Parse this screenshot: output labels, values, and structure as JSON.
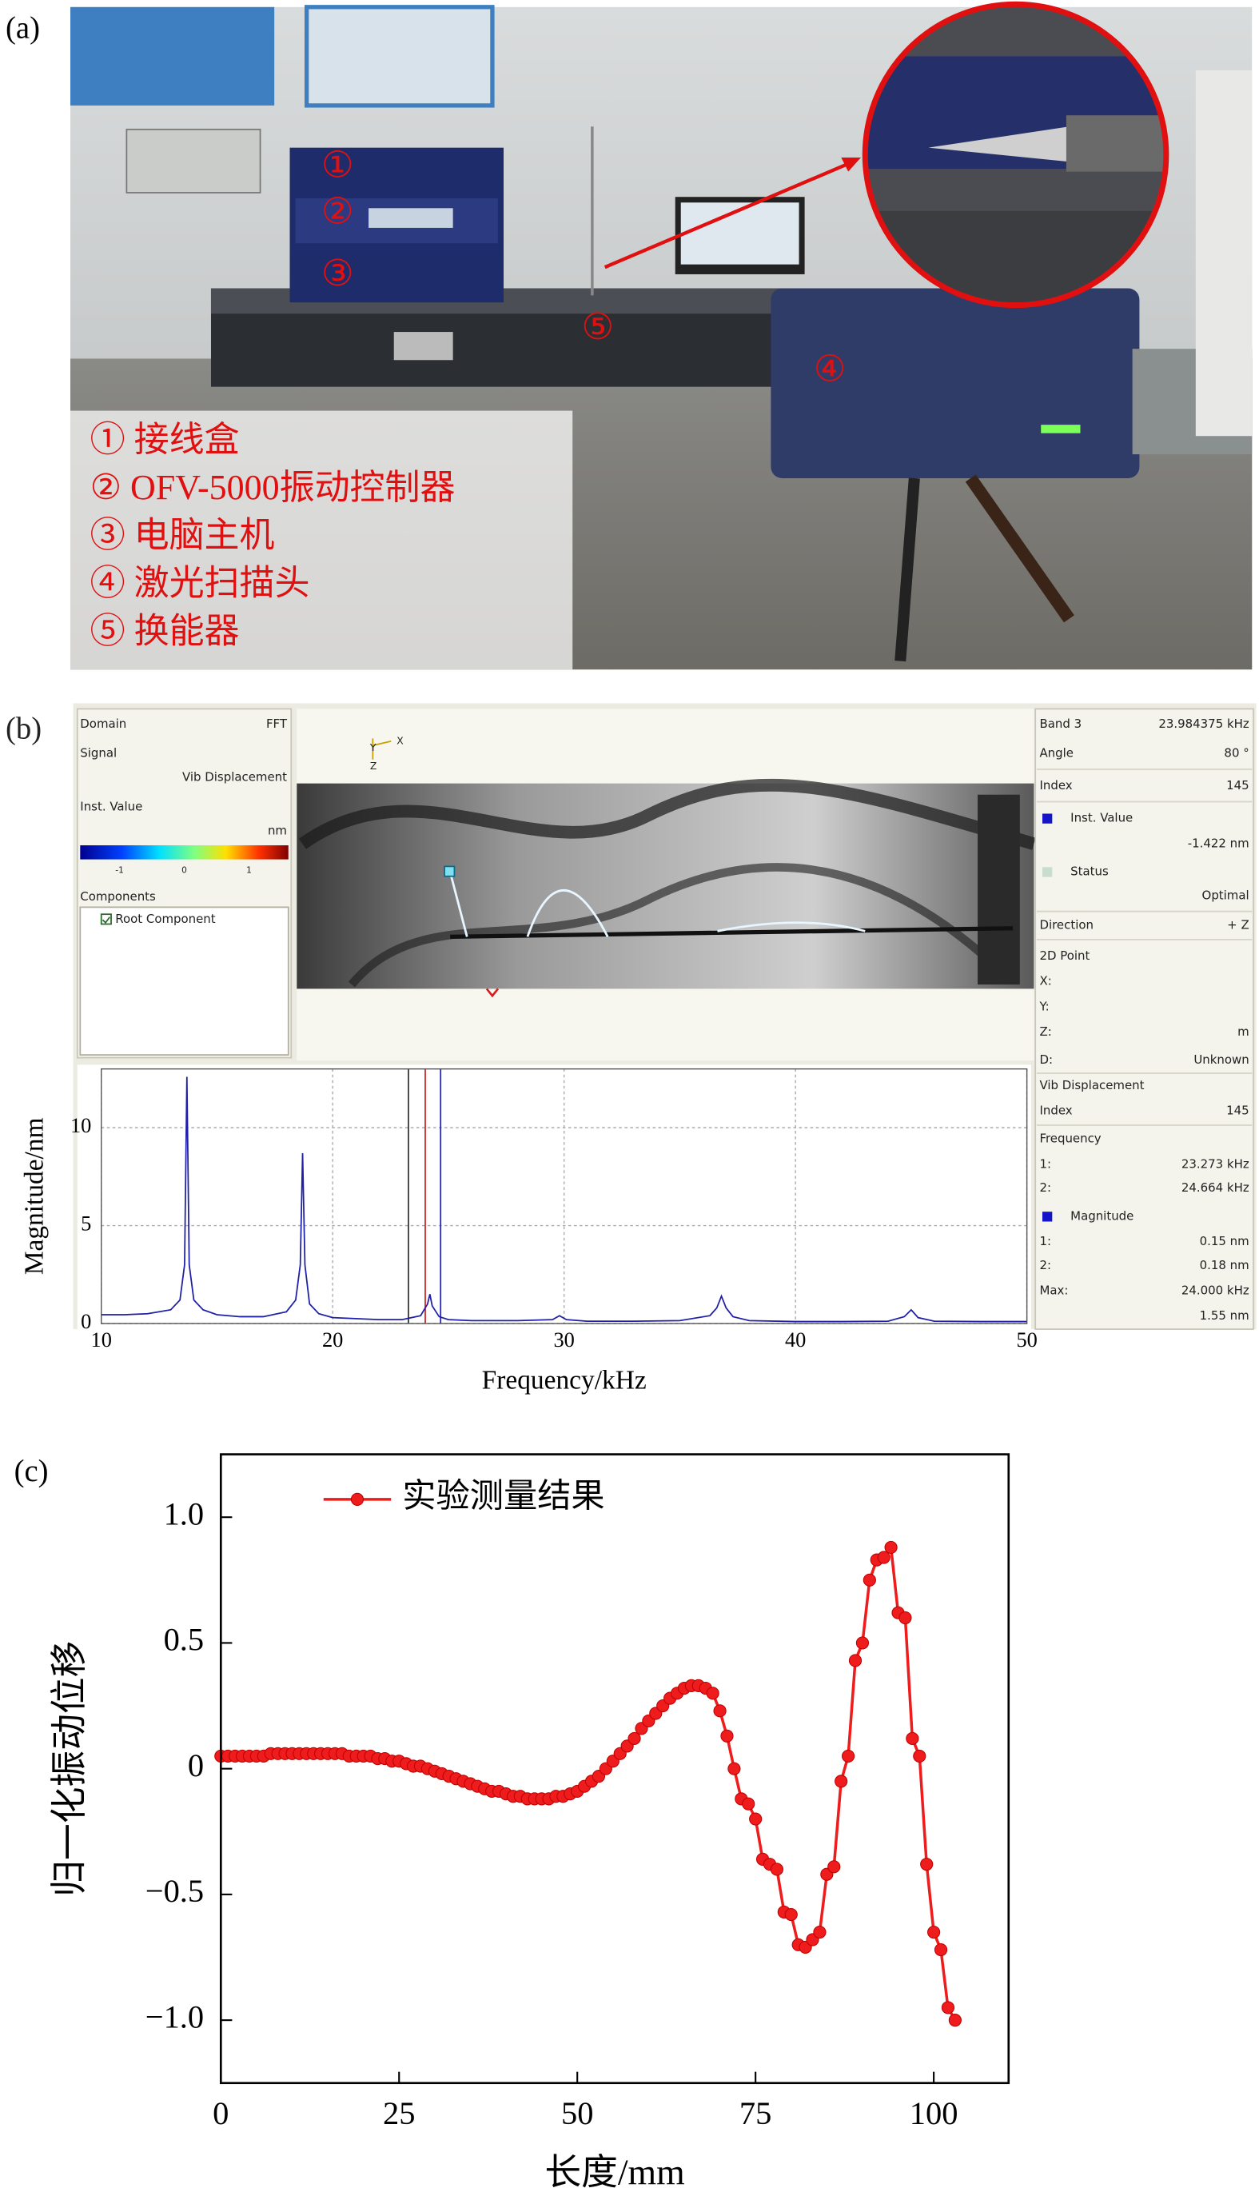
{
  "panel_a": {
    "label": "(a)",
    "photo_markers": [
      "①",
      "②",
      "③",
      "④",
      "⑤"
    ],
    "legend": [
      "① 接线盒",
      "② OFV-5000振动控制器",
      "③ 电脑主机",
      "④ 激光扫描头",
      "⑤ 换能器"
    ]
  },
  "panel_b": {
    "label": "(b)",
    "left_panel": {
      "domain_label": "Domain",
      "domain_value": "FFT",
      "signal_label": "Signal",
      "signal_value": "Vib Displacement",
      "inst_label": "Inst. Value",
      "unit": "nm",
      "colorbar_ticks": [
        "-1",
        "0",
        "1"
      ],
      "components_label": "Components",
      "component": "Root Component"
    },
    "axes_triad": [
      "Y",
      "X",
      "Z"
    ],
    "right_panel": [
      {
        "label": "Band 3",
        "value": "23.984375 kHz"
      },
      {
        "label": "Angle",
        "value": "80 °"
      },
      {
        "label": "Index",
        "value": "145"
      },
      {
        "label": "Inst. Value",
        "swatch": "#1515c8"
      },
      {
        "value": "-1.422 nm"
      },
      {
        "label": "Status",
        "swatch": "#c8dcd0"
      },
      {
        "value": "Optimal"
      },
      {
        "label": "Direction",
        "value": "+ Z"
      },
      {
        "label": "2D Point"
      },
      {
        "label": "X:"
      },
      {
        "label": "Y:"
      },
      {
        "label": "Z:",
        "value": "m"
      },
      {
        "label": "D:",
        "value": "Unknown"
      },
      {
        "label": "Vib Displacement"
      },
      {
        "label": "Index",
        "value": "145"
      },
      {
        "label": "Frequency"
      },
      {
        "label": "1:",
        "value": "23.273 kHz"
      },
      {
        "label": "2:",
        "value": "24.664 kHz"
      },
      {
        "label": "Magnitude",
        "swatch": "#1515c8"
      },
      {
        "label": "1:",
        "value": "0.15 nm"
      },
      {
        "label": "2:",
        "value": "0.18 nm"
      },
      {
        "label": "Max:",
        "value": "24.000 kHz"
      },
      {
        "value": "1.55 nm"
      }
    ]
  },
  "panel_c": {
    "label": "(c)"
  },
  "chart_data": [
    {
      "type": "line",
      "color": "#1f1fa8",
      "x": [
        10,
        11,
        12,
        13,
        13.4,
        13.6,
        13.7,
        13.8,
        14,
        14.4,
        15,
        16,
        17,
        18,
        18.4,
        18.6,
        18.7,
        18.8,
        19,
        19.4,
        20,
        21,
        22,
        23,
        23.8,
        24.1,
        24.2,
        24.3,
        24.6,
        25,
        26,
        28,
        29.5,
        29.8,
        30.1,
        31,
        33,
        35,
        36.3,
        36.6,
        36.8,
        37,
        37.3,
        38,
        40,
        42,
        44,
        44.7,
        45,
        45.3,
        46,
        48,
        50
      ],
      "values": [
        0.45,
        0.45,
        0.5,
        0.7,
        1.2,
        3,
        12.6,
        3,
        1.2,
        0.7,
        0.45,
        0.35,
        0.35,
        0.6,
        1.2,
        3,
        8.7,
        3,
        1,
        0.5,
        0.3,
        0.25,
        0.2,
        0.2,
        0.4,
        1,
        1.5,
        0.9,
        0.35,
        0.2,
        0.15,
        0.15,
        0.2,
        0.4,
        0.2,
        0.12,
        0.12,
        0.15,
        0.4,
        0.8,
        1.4,
        0.8,
        0.35,
        0.15,
        0.1,
        0.1,
        0.12,
        0.35,
        0.7,
        0.3,
        0.12,
        0.1,
        0.1
      ],
      "xlim": [
        10,
        50
      ],
      "ylim": [
        0,
        13
      ],
      "xticks": [
        10,
        20,
        30,
        40,
        50
      ],
      "yticks": [
        0,
        5,
        10
      ],
      "xlabel": "Frequency/kHz",
      "ylabel": "Magnitude/nm",
      "grid": true,
      "cursors": [
        {
          "value": 23.273,
          "color": "#333333"
        },
        {
          "value": 24,
          "color": "#cc2222"
        },
        {
          "value": 24.664,
          "color": "#2222cc"
        }
      ]
    },
    {
      "type": "line",
      "marker": "circle",
      "x": [
        0,
        1,
        2,
        3,
        4,
        5,
        6,
        7,
        8,
        9,
        10,
        11,
        12,
        13,
        14,
        15,
        16,
        17,
        18,
        19,
        20,
        21,
        22,
        23,
        24,
        25,
        26,
        27,
        28,
        29,
        30,
        31,
        32,
        33,
        34,
        35,
        36,
        37,
        38,
        39,
        40,
        41,
        42,
        43,
        44,
        45,
        46,
        47,
        48,
        49,
        50,
        51,
        52,
        53,
        54,
        55,
        56,
        57,
        58,
        59,
        60,
        61,
        62,
        63,
        64,
        65,
        66,
        67,
        68,
        69,
        70,
        71,
        72,
        73,
        74,
        75,
        76,
        77,
        78,
        79,
        80,
        81,
        82,
        83,
        84,
        85,
        86,
        87,
        88,
        89,
        90,
        91,
        92,
        93,
        94,
        95,
        96,
        97,
        98,
        99,
        100,
        101,
        102,
        103
      ],
      "series": [
        {
          "name": "实验测量结果",
          "color": "#ee1c1c",
          "values": [
            0.05,
            0.05,
            0.05,
            0.05,
            0.05,
            0.05,
            0.05,
            0.06,
            0.06,
            0.06,
            0.06,
            0.06,
            0.06,
            0.06,
            0.06,
            0.06,
            0.06,
            0.06,
            0.05,
            0.05,
            0.05,
            0.05,
            0.04,
            0.04,
            0.03,
            0.03,
            0.02,
            0.01,
            0.01,
            0,
            -0.01,
            -0.02,
            -0.03,
            -0.04,
            -0.05,
            -0.06,
            -0.07,
            -0.08,
            -0.09,
            -0.09,
            -0.1,
            -0.11,
            -0.11,
            -0.12,
            -0.12,
            -0.12,
            -0.12,
            -0.11,
            -0.11,
            -0.1,
            -0.09,
            -0.07,
            -0.05,
            -0.03,
            0,
            0.03,
            0.06,
            0.09,
            0.12,
            0.16,
            0.19,
            0.22,
            0.25,
            0.28,
            0.3,
            0.32,
            0.33,
            0.33,
            0.32,
            0.3,
            0.23,
            0.13,
            0,
            -0.12,
            -0.14,
            -0.2,
            -0.36,
            -0.38,
            -0.4,
            -0.57,
            -0.58,
            -0.7,
            -0.71,
            -0.68,
            -0.65,
            -0.42,
            -0.39,
            -0.05,
            0.05,
            0.43,
            0.5,
            0.75,
            0.83,
            0.84,
            0.88,
            0.62,
            0.6,
            0.12,
            0.05,
            -0.38,
            -0.65,
            -0.72,
            -0.95,
            -1
          ]
        }
      ],
      "xlim": [
        0,
        110.5
      ],
      "ylim": [
        -1.25,
        1.25
      ],
      "xticks": [
        0,
        25,
        50,
        75,
        100
      ],
      "yticks": [
        {
          "value": 1,
          "label": "1.0"
        },
        0.5,
        0,
        {
          "value": -0.5,
          "label": "−0.5"
        },
        {
          "value": -1,
          "label": "−1.0"
        }
      ],
      "xlabel": "长度/mm",
      "ylabel": "归一化振动位移"
    }
  ]
}
